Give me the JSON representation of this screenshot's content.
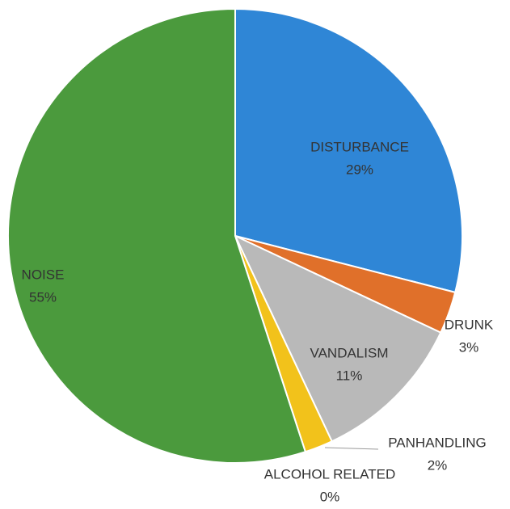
{
  "chart_data": {
    "type": "pie",
    "categories": [
      "DISTURBANCE",
      "DRUNK",
      "VANDALISM",
      "PANHANDLING",
      "ALCOHOL RELATED",
      "NOISE"
    ],
    "values": [
      29,
      3,
      11,
      2,
      0,
      55
    ],
    "value_labels": [
      "29%",
      "3%",
      "11%",
      "2%",
      "0%",
      "55%"
    ],
    "colors": [
      "#2f86d6",
      "#e0702a",
      "#b9b9b9",
      "#f2c21b",
      "#8a6fb5",
      "#4b9a3d"
    ]
  }
}
